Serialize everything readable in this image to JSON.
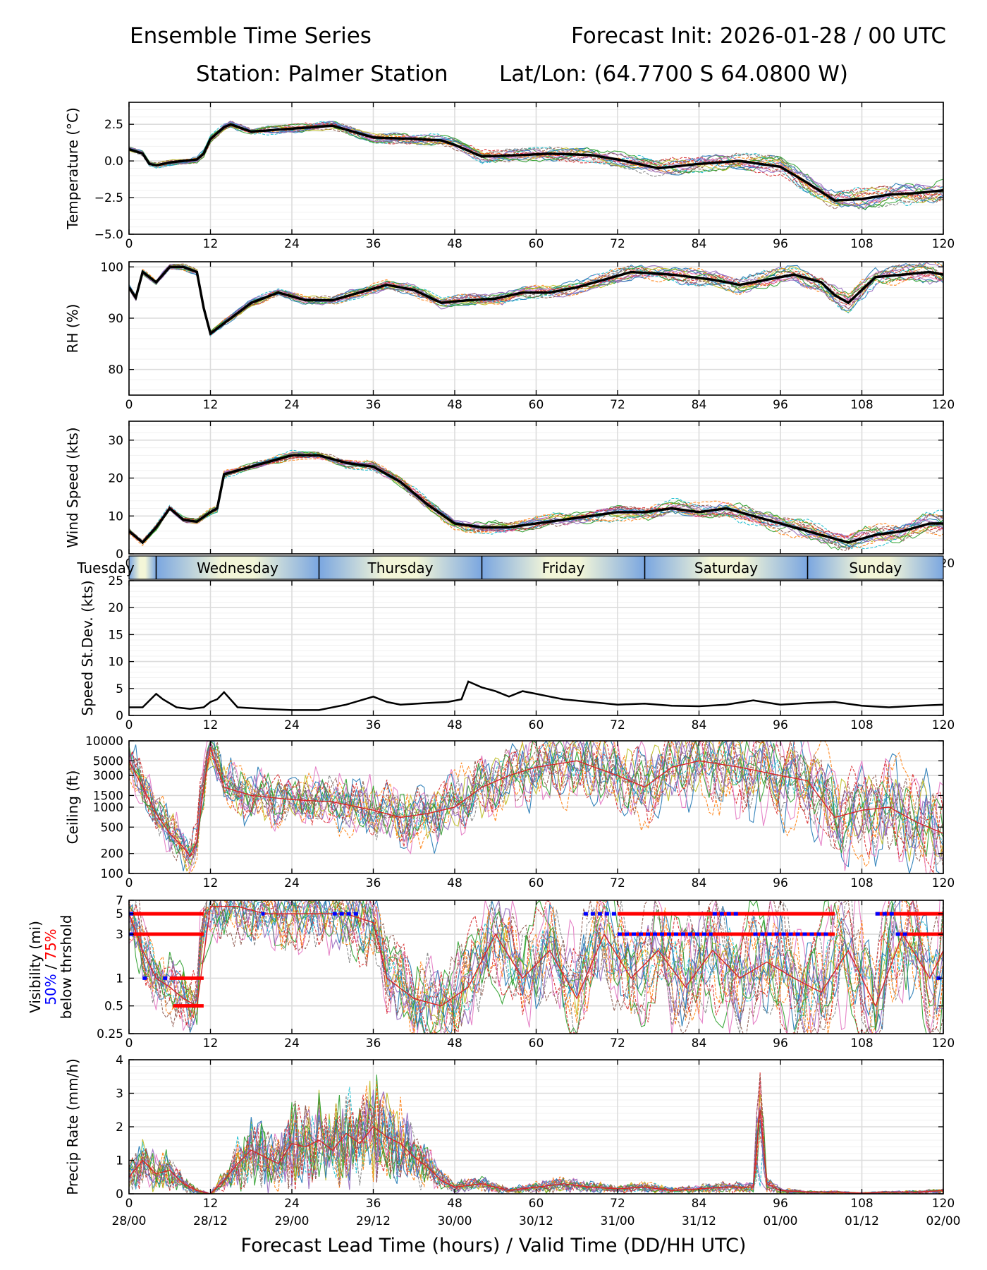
{
  "header": {
    "title": "Ensemble Time Series",
    "init": "Forecast Init: 2026-01-28 / 00 UTC",
    "station": "Station: Palmer Station",
    "latlon": "Lat/Lon: (64.7700 S 64.0800 W)"
  },
  "x_axis": {
    "title": "Forecast Lead Time (hours) / Valid Time (DD/HH UTC)",
    "lead_ticks": [
      "0",
      "12",
      "24",
      "36",
      "48",
      "60",
      "72",
      "84",
      "96",
      "108",
      "120"
    ],
    "valid_ticks": [
      "28/00",
      "28/12",
      "29/00",
      "29/12",
      "30/00",
      "30/12",
      "31/00",
      "31/12",
      "01/00",
      "01/12",
      "02/00"
    ],
    "range": [
      0,
      120
    ]
  },
  "day_strip": {
    "labels": [
      "Tuesday",
      "Wednesday",
      "Thursday",
      "Friday",
      "Saturday",
      "Sunday"
    ],
    "boundaries_hours": [
      4,
      28,
      52,
      76,
      100
    ]
  },
  "visibility_legend": {
    "line1": "Visibility (mi)",
    "pct50": "50%",
    "slash": " / ",
    "pct75": "75%",
    "line3": "below thrshold",
    "color50": "#0000ff",
    "color75": "#ff0000"
  },
  "chart_data": [
    {
      "type": "line",
      "title": "Temperature",
      "ylabel": "Temperature (°C)",
      "ylim": [
        -5,
        4
      ],
      "yticks": [
        -5,
        -2.5,
        0,
        2.5
      ],
      "ytick_labels": [
        "−5.0",
        "−2.5",
        "0.0",
        "2.5"
      ],
      "series": [
        {
          "name": "ensemble mean",
          "x": [
            0,
            2,
            3,
            4,
            6,
            8,
            10,
            11,
            12,
            14,
            15,
            18,
            24,
            30,
            36,
            42,
            46,
            48,
            52,
            58,
            62,
            68,
            72,
            78,
            84,
            90,
            96,
            100,
            104,
            108,
            112,
            116,
            120
          ],
          "y": [
            0.8,
            0.5,
            -0.2,
            -0.3,
            -0.1,
            0.0,
            0.1,
            0.5,
            1.5,
            2.3,
            2.5,
            2.0,
            2.2,
            2.4,
            1.6,
            1.5,
            1.4,
            1.1,
            0.3,
            0.4,
            0.5,
            0.4,
            0.1,
            -0.5,
            -0.2,
            0.0,
            -0.4,
            -1.5,
            -2.7,
            -2.6,
            -2.3,
            -2.2,
            -2.0
          ]
        }
      ]
    },
    {
      "type": "line",
      "title": "Relative Humidity",
      "ylabel": "RH (%)",
      "ylim": [
        75,
        101
      ],
      "yticks": [
        80,
        90,
        100
      ],
      "ytick_labels": [
        "80",
        "90",
        "100"
      ],
      "series": [
        {
          "name": "ensemble mean",
          "x": [
            0,
            1,
            2,
            4,
            6,
            8,
            10,
            11,
            12,
            13,
            15,
            18,
            22,
            26,
            30,
            34,
            38,
            42,
            46,
            50,
            54,
            58,
            62,
            66,
            70,
            74,
            80,
            86,
            90,
            94,
            98,
            102,
            104,
            106,
            108,
            110,
            114,
            118,
            120
          ],
          "y": [
            96,
            94,
            99,
            97,
            100,
            100,
            99,
            92,
            87,
            88,
            90,
            93,
            95,
            93.5,
            93.5,
            95,
            96.5,
            95.5,
            93,
            93.5,
            93.8,
            95,
            95,
            96,
            97.5,
            99,
            98.5,
            97.5,
            96.5,
            97.5,
            98.5,
            97,
            94.5,
            93,
            95.5,
            98,
            98.5,
            99,
            98.5
          ]
        }
      ]
    },
    {
      "type": "line",
      "title": "Wind Speed",
      "ylabel": "Wind Speed (kts)",
      "ylim": [
        0,
        35
      ],
      "yticks": [
        0,
        10,
        20,
        30
      ],
      "ytick_labels": [
        "0",
        "10",
        "20",
        "30"
      ],
      "series": [
        {
          "name": "ensemble mean",
          "x": [
            0,
            2,
            4,
            6,
            8,
            10,
            12,
            13,
            14,
            16,
            20,
            24,
            28,
            32,
            36,
            40,
            44,
            48,
            52,
            56,
            60,
            64,
            68,
            72,
            76,
            80,
            84,
            88,
            92,
            96,
            100,
            104,
            106,
            108,
            110,
            114,
            118,
            120
          ],
          "y": [
            6,
            3,
            7,
            12,
            9,
            8.5,
            11,
            12,
            21,
            22,
            24,
            26,
            26,
            24,
            23,
            19,
            13,
            8,
            7,
            7,
            8,
            9,
            10,
            11,
            11,
            12,
            11,
            12,
            10,
            8,
            6,
            4,
            3,
            4,
            5,
            6,
            8,
            8
          ]
        }
      ]
    },
    {
      "type": "line",
      "title": "Speed Standard Deviation",
      "ylabel": "Speed St.Dev. (kts)",
      "ylim": [
        0,
        25
      ],
      "yticks": [
        0,
        5,
        10,
        15,
        20,
        25
      ],
      "ytick_labels": [
        "0",
        "5",
        "10",
        "15",
        "20",
        "25"
      ],
      "series": [
        {
          "name": "ensemble st.dev.",
          "x": [
            0,
            2,
            4,
            5,
            7,
            9,
            11,
            12,
            13,
            14,
            16,
            20,
            24,
            28,
            32,
            36,
            38,
            40,
            44,
            47,
            49,
            50,
            52,
            54,
            56,
            58,
            60,
            62,
            64,
            68,
            72,
            76,
            80,
            84,
            88,
            92,
            96,
            100,
            104,
            108,
            112,
            116,
            120
          ],
          "y": [
            1.5,
            1.5,
            4,
            3,
            1.5,
            1.2,
            1.5,
            2.5,
            3,
            4.3,
            1.5,
            1.2,
            1,
            1,
            2,
            3.5,
            2.5,
            2,
            2.3,
            2.5,
            3,
            6.3,
            5.2,
            4.5,
            3.5,
            4.5,
            4,
            3.5,
            3,
            2.5,
            2,
            2.2,
            1.8,
            1.7,
            2,
            2.8,
            2,
            2.3,
            2.5,
            1.8,
            1.5,
            1.8,
            2
          ]
        }
      ]
    },
    {
      "type": "line",
      "title": "Ceiling",
      "ylabel": "Ceiling (ft)",
      "yscale": "log",
      "ylim": [
        100,
        10000
      ],
      "yticks": [
        100,
        200,
        500,
        1000,
        1500,
        3000,
        5000,
        10000
      ],
      "ytick_labels": [
        "100",
        "200",
        "500",
        "1000",
        "1500",
        "3000",
        "5000",
        "10000"
      ],
      "series": [
        {
          "name": "representative member",
          "x": [
            0,
            2,
            4,
            6,
            8,
            9,
            10,
            11,
            12,
            14,
            18,
            24,
            30,
            36,
            40,
            44,
            48,
            52,
            56,
            60,
            66,
            72,
            76,
            80,
            84,
            90,
            96,
            100,
            104,
            108,
            112,
            116,
            120
          ],
          "y": [
            5000,
            2000,
            800,
            400,
            250,
            180,
            300,
            2000,
            8000,
            2000,
            1500,
            1300,
            1200,
            900,
            700,
            800,
            1000,
            2000,
            3000,
            4000,
            5000,
            3000,
            2000,
            4000,
            5000,
            4000,
            3000,
            2500,
            700,
            900,
            1000,
            600,
            400
          ]
        }
      ]
    },
    {
      "type": "line",
      "title": "Visibility",
      "ylabel": "Visibility (mi) 50% / 75% below thrshold",
      "yscale": "log",
      "ylim": [
        0.25,
        7
      ],
      "yticks": [
        0.25,
        0.5,
        1,
        3,
        5,
        7
      ],
      "ytick_labels": [
        "0.25",
        "0.5",
        "1",
        "3",
        "5",
        "7"
      ],
      "series": [
        {
          "name": "representative member",
          "x": [
            0,
            2,
            4,
            6,
            8,
            10,
            12,
            16,
            20,
            24,
            28,
            32,
            36,
            38,
            42,
            46,
            50,
            54,
            58,
            62,
            66,
            70,
            74,
            78,
            82,
            86,
            90,
            94,
            98,
            102,
            106,
            110,
            114,
            118,
            120
          ],
          "y": [
            5,
            2,
            1,
            0.8,
            0.6,
            0.5,
            6,
            6,
            5,
            5,
            5,
            5,
            4,
            1,
            0.6,
            0.5,
            0.8,
            3,
            1,
            2,
            0.6,
            3,
            1,
            2,
            0.8,
            2,
            1,
            1.5,
            1,
            0.7,
            2,
            0.5,
            3,
            1,
            2
          ]
        }
      ],
      "threshold_segments_75": [
        {
          "y": 5,
          "x0": 0,
          "x1": 11
        },
        {
          "y": 3,
          "x0": 0,
          "x1": 11
        },
        {
          "y": 1,
          "x0": 6,
          "x1": 11
        },
        {
          "y": 0.5,
          "x0": 6.5,
          "x1": 11
        },
        {
          "y": 5,
          "x0": 72,
          "x1": 104
        },
        {
          "y": 3,
          "x0": 72,
          "x1": 104
        },
        {
          "y": 5,
          "x0": 110,
          "x1": 120
        },
        {
          "y": 3,
          "x0": 113,
          "x1": 120
        }
      ],
      "threshold_segments_50": [
        {
          "y": 5,
          "x0": 0,
          "x1": 1
        },
        {
          "y": 3,
          "x0": 0,
          "x1": 1
        },
        {
          "y": 1,
          "x0": 2,
          "x1": 3
        },
        {
          "y": 1,
          "x0": 5,
          "x1": 6
        },
        {
          "y": 5,
          "x0": 19.5,
          "x1": 20
        },
        {
          "y": 5,
          "x0": 30,
          "x1": 34
        },
        {
          "y": 5,
          "x0": 67,
          "x1": 72
        },
        {
          "y": 5,
          "x0": 86,
          "x1": 90
        },
        {
          "y": 3,
          "x0": 72,
          "x1": 86
        },
        {
          "y": 3,
          "x0": 92,
          "x1": 103
        },
        {
          "y": 5,
          "x0": 110,
          "x1": 113
        },
        {
          "y": 3,
          "x0": 113,
          "x1": 115
        },
        {
          "y": 1,
          "x0": 119,
          "x1": 120
        }
      ]
    },
    {
      "type": "line",
      "title": "Precipitation Rate",
      "ylabel": "Precip Rate (mm/h)",
      "ylim": [
        0,
        4
      ],
      "yticks": [
        0,
        1,
        2,
        3,
        4
      ],
      "ytick_labels": [
        "0",
        "1",
        "2",
        "3",
        "4"
      ],
      "series": [
        {
          "name": "representative member",
          "x": [
            0,
            2,
            4,
            6,
            8,
            10,
            12,
            14,
            16,
            18,
            20,
            22,
            24,
            26,
            28,
            30,
            32,
            34,
            36,
            38,
            40,
            42,
            44,
            46,
            48,
            52,
            56,
            60,
            64,
            68,
            72,
            76,
            80,
            84,
            88,
            92,
            93,
            94,
            96,
            100,
            104,
            108,
            112,
            116,
            120
          ],
          "y": [
            0.5,
            1,
            0.6,
            0.7,
            0.3,
            0.1,
            0.0,
            0.4,
            0.9,
            1.3,
            1.1,
            0.9,
            1.5,
            1.4,
            1.6,
            1.3,
            1.8,
            1.5,
            2.0,
            1.7,
            1.5,
            1.1,
            0.8,
            0.4,
            0.2,
            0.3,
            0.1,
            0.2,
            0.3,
            0.2,
            0.15,
            0.2,
            0.1,
            0.15,
            0.2,
            0.2,
            2.5,
            0.3,
            0.1,
            0.05,
            0.05,
            0.02,
            0.05,
            0.05,
            0.1
          ]
        }
      ]
    }
  ]
}
